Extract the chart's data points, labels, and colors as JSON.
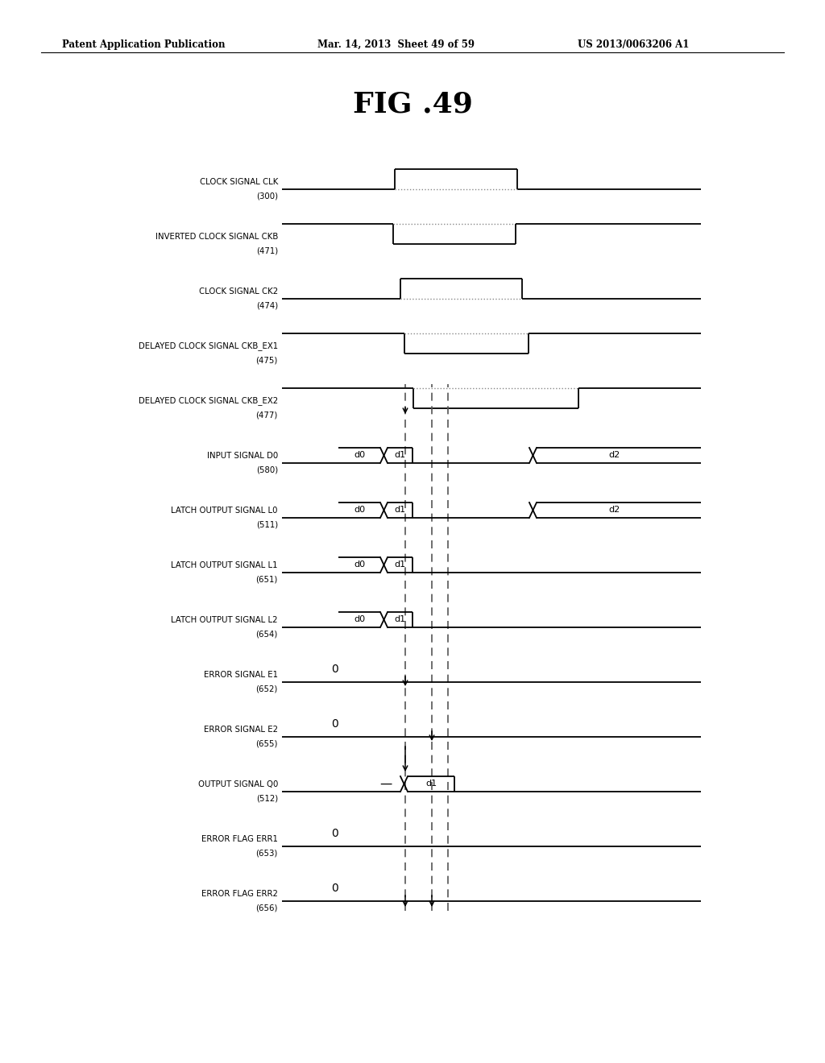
{
  "title": "FIG .49",
  "header_left": "Patent Application Publication",
  "header_center": "Mar. 14, 2013  Sheet 49 of 59",
  "header_right": "US 2013/0063206 A1",
  "background_color": "#ffffff",
  "signals": [
    {
      "label": "CLOCK SIGNAL CLK",
      "num": "(300)"
    },
    {
      "label": "INVERTED CLOCK SIGNAL CKB",
      "num": "(471)"
    },
    {
      "label": "CLOCK SIGNAL CK2",
      "num": "(474)"
    },
    {
      "label": "DELAYED CLOCK SIGNAL CKB_EX1",
      "num": "(475)"
    },
    {
      "label": "DELAYED CLOCK SIGNAL CKB_EX2",
      "num": "(477)"
    },
    {
      "label": "INPUT SIGNAL D0",
      "num": "(580)"
    },
    {
      "label": "LATCH OUTPUT SIGNAL L0",
      "num": "(511)"
    },
    {
      "label": "LATCH OUTPUT SIGNAL L1",
      "num": "(651)"
    },
    {
      "label": "LATCH OUTPUT SIGNAL L2",
      "num": "(654)"
    },
    {
      "label": "ERROR SIGNAL E1",
      "num": "(652)"
    },
    {
      "label": "ERROR SIGNAL E2",
      "num": "(655)"
    },
    {
      "label": "OUTPUT SIGNAL Q0",
      "num": "(512)"
    },
    {
      "label": "ERROR FLAG ERR1",
      "num": "(653)"
    },
    {
      "label": "ERROR FLAG ERR2",
      "num": "(656)"
    }
  ]
}
